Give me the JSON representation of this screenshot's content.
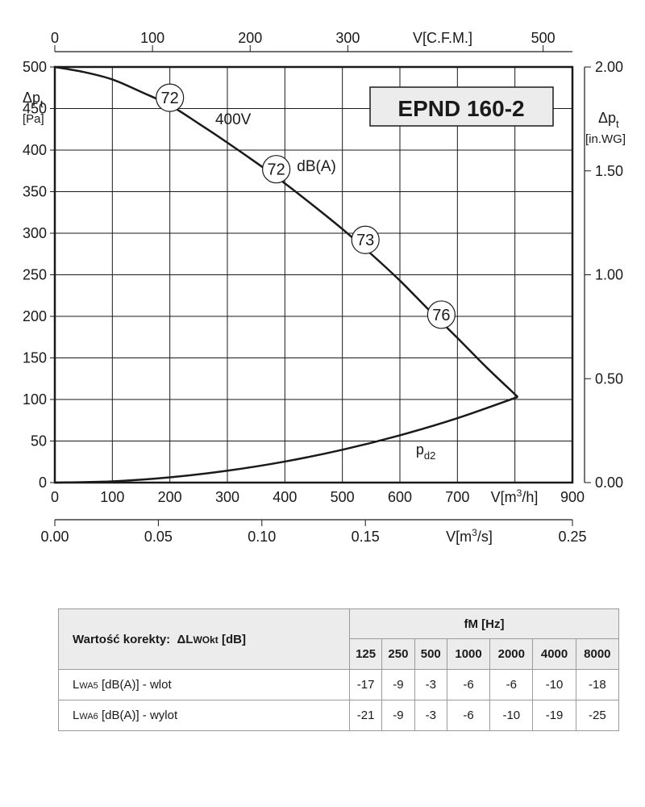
{
  "chart_data": {
    "type": "line",
    "title": "EPND 160-2",
    "x": {
      "label": "V[m3/h]",
      "range": [
        0,
        900
      ],
      "ticks": [
        0,
        100,
        200,
        300,
        400,
        500,
        600,
        700,
        900
      ]
    },
    "x_top": {
      "label": "V[C.F.M.]",
      "range": [
        0,
        530
      ],
      "ticks": [
        0,
        100,
        200,
        300,
        500
      ]
    },
    "x_bottom_secondary": {
      "label": "V[m3/s]",
      "range": [
        0,
        0.25
      ],
      "ticks": [
        "0.00",
        "0.05",
        "0.10",
        "0.15",
        "0.25"
      ]
    },
    "y": {
      "label": "Δpt",
      "unit": "[Pa]",
      "range": [
        0,
        500
      ],
      "ticks": [
        0,
        50,
        100,
        150,
        200,
        250,
        300,
        350,
        400,
        450,
        500
      ]
    },
    "y_right": {
      "label": "Δpt",
      "unit": "[in.WG]",
      "range": [
        0,
        2.0
      ],
      "ticks": [
        "0.00",
        "0.50",
        "1.00",
        "1.50",
        "2.00"
      ]
    },
    "grid": true,
    "series": [
      {
        "name": "400V",
        "x": [
          0,
          50,
          100,
          150,
          200,
          250,
          300,
          350,
          400,
          450,
          500,
          550,
          600,
          650,
          700,
          750,
          805
        ],
        "y": [
          500,
          494,
          485,
          470,
          454,
          432,
          409,
          385,
          360,
          333,
          305,
          275,
          243,
          208,
          174,
          139,
          103
        ]
      },
      {
        "name": "pd2",
        "x": [
          0,
          100,
          200,
          300,
          400,
          500,
          600,
          700,
          805
        ],
        "y": [
          0,
          1.5,
          6.3,
          14.3,
          25.3,
          39.5,
          56.9,
          77.5,
          103
        ]
      }
    ],
    "annotations": [
      {
        "text": "72",
        "x": 200,
        "y": 463
      },
      {
        "text": "72",
        "x": 385,
        "y": 377
      },
      {
        "text": "73",
        "x": 540,
        "y": 292
      },
      {
        "text": "76",
        "x": 672,
        "y": 202
      },
      {
        "text": "400V",
        "x": 310,
        "y": 431
      },
      {
        "text": "dB(A)",
        "x": 455,
        "y": 375
      },
      {
        "text": "pd2",
        "x": 645,
        "y": 34
      }
    ]
  },
  "correction_table": {
    "header_label": "Wartość korekty:",
    "header_symbol": "ΔLWOkt [dB]",
    "header_freq": "fM [Hz]",
    "bands": [
      "125",
      "250",
      "500",
      "1000",
      "2000",
      "4000",
      "8000"
    ],
    "rows": [
      {
        "label": "LWA5 [dB(A)] - wlot",
        "values": [
          "-17",
          "-9",
          "-3",
          "-6",
          "-6",
          "-10",
          "-18"
        ]
      },
      {
        "label": "LWA6 [dB(A)] - wylot",
        "values": [
          "-21",
          "-9",
          "-3",
          "-6",
          "-10",
          "-19",
          "-25"
        ]
      }
    ]
  }
}
